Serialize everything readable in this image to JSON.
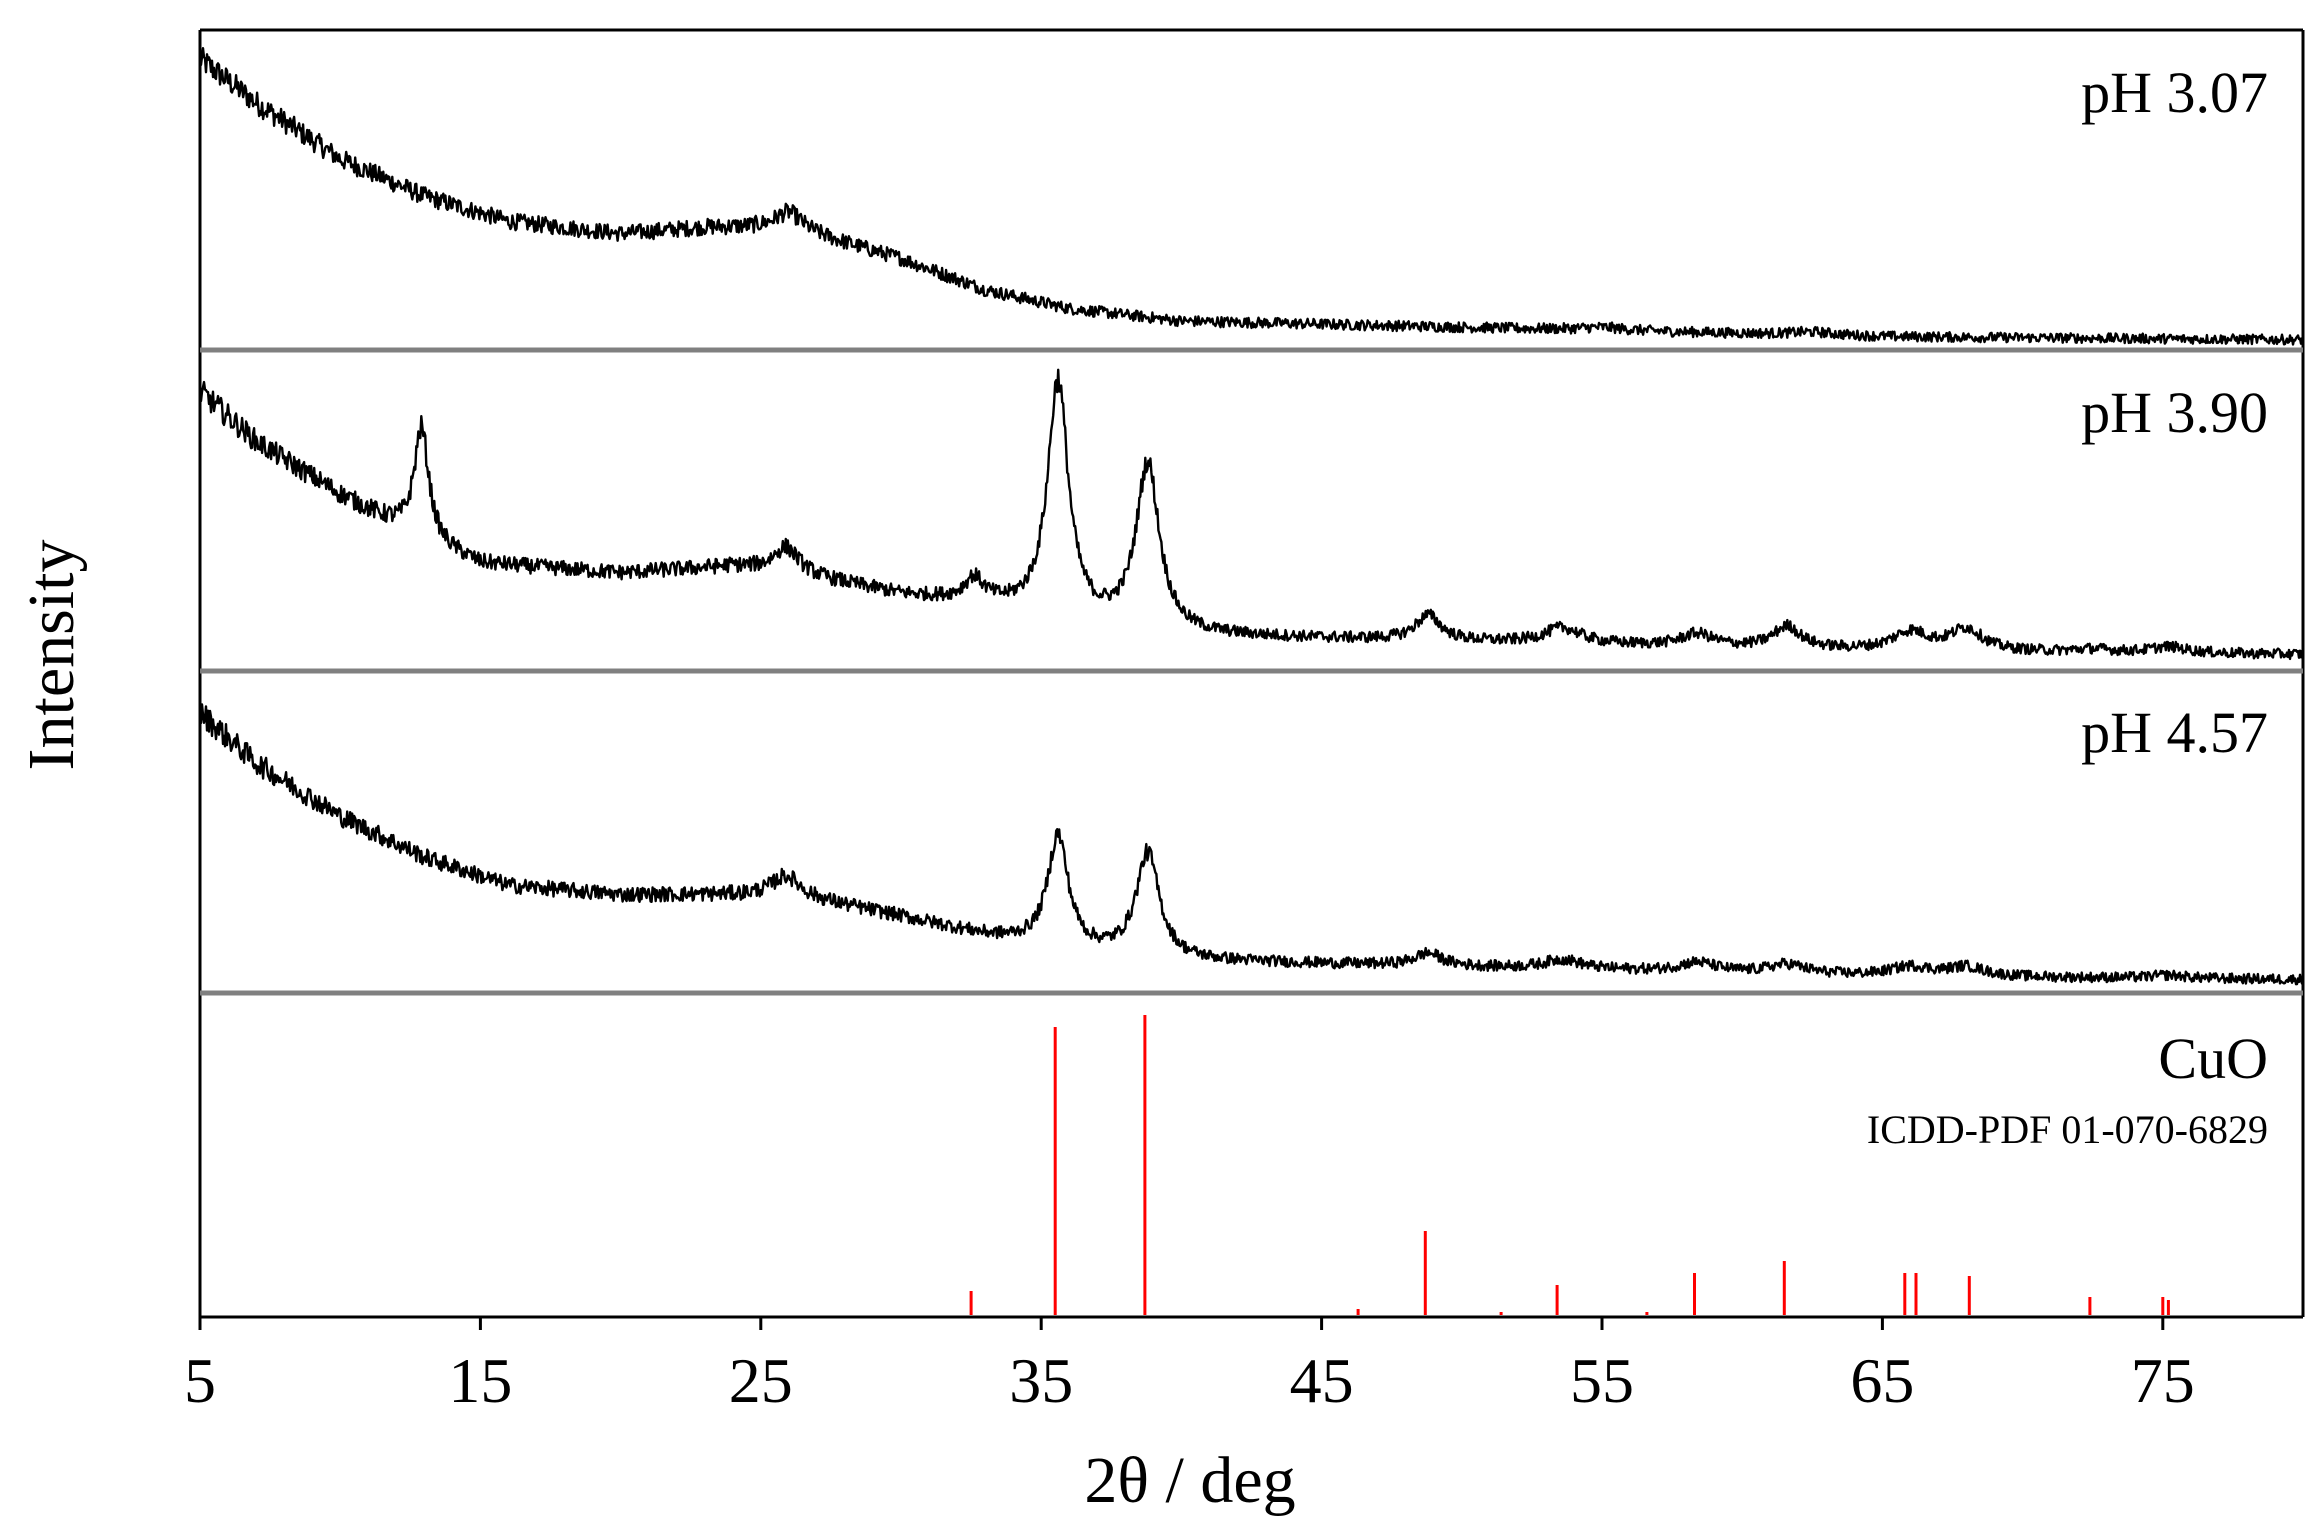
{
  "chart_data": {
    "type": "line",
    "xlabel": "2θ / deg",
    "ylabel": "Intensity",
    "xlim": [
      5,
      80
    ],
    "xticks": [
      "5",
      "15",
      "25",
      "35",
      "45",
      "55",
      "65",
      "75"
    ],
    "colors": {
      "pattern": "#000000",
      "reference": "#ff0000",
      "divider": "#808080"
    },
    "series": [
      {
        "name": "pH 3.07",
        "background": [
          [
            5,
            0.92
          ],
          [
            7,
            0.78
          ],
          [
            10,
            0.6
          ],
          [
            13,
            0.48
          ],
          [
            16,
            0.4
          ],
          [
            20,
            0.36
          ],
          [
            23,
            0.38
          ],
          [
            26,
            0.38
          ],
          [
            30,
            0.28
          ],
          [
            33,
            0.18
          ],
          [
            36,
            0.12
          ],
          [
            40,
            0.08
          ],
          [
            45,
            0.07
          ],
          [
            55,
            0.05
          ],
          [
            65,
            0.03
          ],
          [
            80,
            0.02
          ]
        ],
        "peaks": [
          [
            26.0,
            0.05,
            0.6
          ],
          [
            55.0,
            0.01,
            1.0
          ],
          [
            62.5,
            0.01,
            1.0
          ]
        ]
      },
      {
        "name": "pH 3.90",
        "background": [
          [
            5,
            0.88
          ],
          [
            7,
            0.72
          ],
          [
            10,
            0.55
          ],
          [
            13,
            0.4
          ],
          [
            15,
            0.33
          ],
          [
            20,
            0.3
          ],
          [
            24,
            0.32
          ],
          [
            26,
            0.3
          ],
          [
            30,
            0.23
          ],
          [
            33,
            0.2
          ],
          [
            36,
            0.14
          ],
          [
            40,
            0.1
          ],
          [
            45,
            0.09
          ],
          [
            55,
            0.07
          ],
          [
            65,
            0.05
          ],
          [
            80,
            0.04
          ]
        ],
        "peaks": [
          [
            12.9,
            0.36,
            0.32
          ],
          [
            25.9,
            0.08,
            0.55
          ],
          [
            32.6,
            0.07,
            0.4
          ],
          [
            35.6,
            0.76,
            0.45
          ],
          [
            38.8,
            0.53,
            0.5
          ],
          [
            48.8,
            0.08,
            0.55
          ],
          [
            53.6,
            0.05,
            0.8
          ],
          [
            58.4,
            0.04,
            0.7
          ],
          [
            61.6,
            0.07,
            0.6
          ],
          [
            66.0,
            0.06,
            0.8
          ],
          [
            68.0,
            0.07,
            0.7
          ],
          [
            72.5,
            0.01,
            0.8
          ],
          [
            75.2,
            0.02,
            0.8
          ]
        ]
      },
      {
        "name": "pH 4.57",
        "background": [
          [
            5,
            0.88
          ],
          [
            7,
            0.72
          ],
          [
            10,
            0.55
          ],
          [
            13,
            0.42
          ],
          [
            16,
            0.33
          ],
          [
            20,
            0.3
          ],
          [
            24,
            0.3
          ],
          [
            26,
            0.3
          ],
          [
            30,
            0.23
          ],
          [
            33,
            0.17
          ],
          [
            36,
            0.12
          ],
          [
            40,
            0.09
          ],
          [
            45,
            0.08
          ],
          [
            55,
            0.06
          ],
          [
            65,
            0.04
          ],
          [
            80,
            0.03
          ]
        ],
        "peaks": [
          [
            25.9,
            0.06,
            0.6
          ],
          [
            35.6,
            0.36,
            0.45
          ],
          [
            38.8,
            0.33,
            0.5
          ],
          [
            48.8,
            0.04,
            0.6
          ],
          [
            53.6,
            0.03,
            0.8
          ],
          [
            58.4,
            0.03,
            0.8
          ],
          [
            61.6,
            0.03,
            0.8
          ],
          [
            66.0,
            0.03,
            0.9
          ],
          [
            68.0,
            0.03,
            0.8
          ],
          [
            75.2,
            0.01,
            0.8
          ]
        ]
      }
    ],
    "reference": {
      "name": "CuO",
      "source": "ICDD-PDF  01-070-6829",
      "lines": [
        [
          32.5,
          0.08
        ],
        [
          35.5,
          0.96
        ],
        [
          38.7,
          1.0
        ],
        [
          46.3,
          0.02
        ],
        [
          48.7,
          0.28
        ],
        [
          51.4,
          0.01
        ],
        [
          53.4,
          0.1
        ],
        [
          56.6,
          0.01
        ],
        [
          58.3,
          0.14
        ],
        [
          61.5,
          0.18
        ],
        [
          65.8,
          0.14
        ],
        [
          66.2,
          0.14
        ],
        [
          68.1,
          0.13
        ],
        [
          72.4,
          0.06
        ],
        [
          75.0,
          0.06
        ],
        [
          75.2,
          0.05
        ]
      ]
    }
  }
}
